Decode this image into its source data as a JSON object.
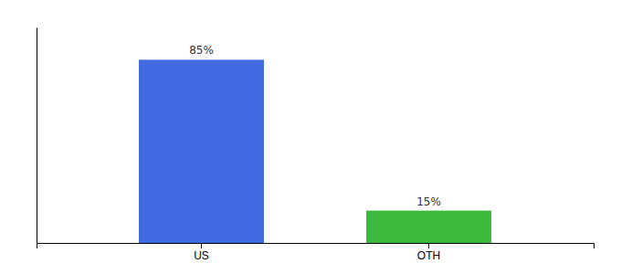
{
  "chart_data": {
    "type": "bar",
    "categories": [
      "US",
      "OTH"
    ],
    "values": [
      85,
      15
    ],
    "value_labels": [
      "85%",
      "15%"
    ],
    "colors": [
      "#4169E1",
      "#3CB83C"
    ],
    "ylim": [
      0,
      100
    ],
    "data_labels": true,
    "tick_labels": "x",
    "grid": false
  }
}
